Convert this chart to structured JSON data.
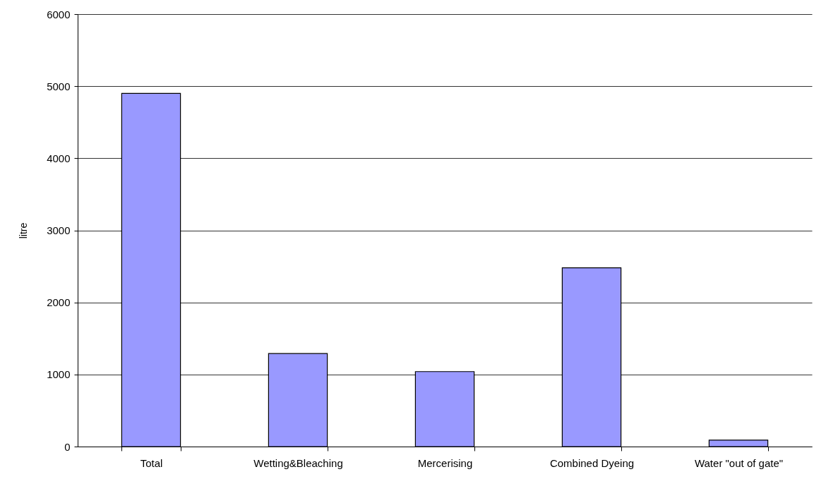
{
  "chart_data": {
    "type": "bar",
    "ylabel": "litre",
    "categories": [
      "Total",
      "Wetting&Bleaching",
      "Mercerising",
      "Combined Dyeing",
      "Water \"out of gate\""
    ],
    "values": [
      4900,
      1290,
      1040,
      2480,
      90
    ],
    "color": "#9999ff",
    "ylim": [
      0,
      6000
    ],
    "yticks": [
      0,
      1000,
      2000,
      3000,
      4000,
      5000,
      6000
    ],
    "grid": "y"
  }
}
